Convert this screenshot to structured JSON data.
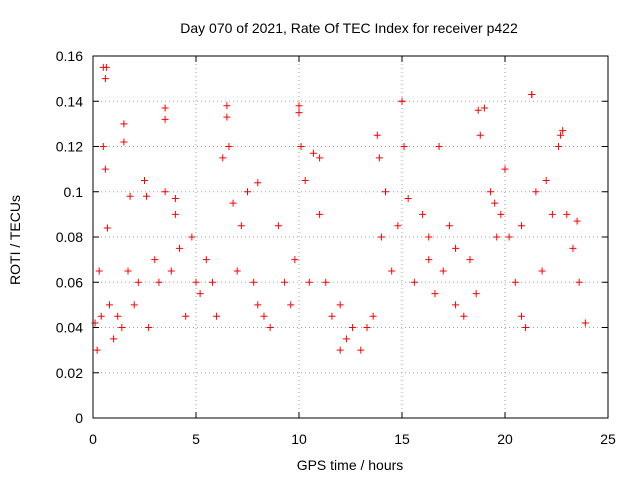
{
  "chart_data": {
    "type": "scatter",
    "title": "Day 070 of 2021, Rate Of TEC Index for receiver p422",
    "xlabel": "GPS time / hours",
    "ylabel": "ROTI / TECUs",
    "xlim": [
      0,
      25
    ],
    "ylim": [
      0,
      0.16
    ],
    "xticks": [
      0,
      5,
      10,
      15,
      20,
      25
    ],
    "xtick_labels": [
      "0",
      "5",
      "10",
      "15",
      "20",
      "25"
    ],
    "yticks": [
      0,
      0.02,
      0.04,
      0.06,
      0.08,
      0.1,
      0.12,
      0.14,
      0.16
    ],
    "ytick_labels": [
      "0",
      "0.02",
      "0.04",
      "0.06",
      "0.08",
      "0.1",
      "0.12",
      "0.14",
      "0.16"
    ],
    "grid": true,
    "marker": "plus",
    "color": "#ff0000",
    "series": [
      {
        "name": "ROTI",
        "x": [
          0.1,
          0.2,
          0.3,
          0.4,
          0.5,
          0.6,
          0.65,
          0.7,
          0.8,
          1.0,
          1.2,
          1.4,
          1.5,
          1.7,
          1.8,
          2.0,
          2.2,
          2.5,
          2.7,
          3.0,
          3.2,
          3.5,
          3.5,
          3.8,
          4.0,
          4.2,
          4.5,
          4.8,
          5.0,
          5.2,
          5.5,
          5.8,
          6.0,
          6.3,
          6.5,
          6.6,
          6.8,
          7.0,
          7.2,
          7.5,
          7.8,
          8.0,
          8.3,
          8.6,
          9.0,
          9.3,
          9.6,
          9.8,
          10.0,
          10.1,
          10.3,
          10.5,
          10.7,
          11.0,
          11.3,
          11.6,
          12.0,
          12.3,
          12.6,
          13.0,
          13.3,
          13.6,
          13.8,
          14.0,
          14.2,
          14.5,
          14.8,
          15.0,
          15.1,
          15.3,
          15.6,
          16.0,
          16.3,
          16.6,
          16.8,
          17.0,
          17.3,
          17.6,
          18.0,
          18.3,
          18.6,
          18.8,
          19.0,
          19.3,
          19.6,
          19.8,
          20.0,
          20.2,
          20.5,
          20.8,
          21.0,
          21.3,
          21.5,
          21.8,
          22.0,
          22.3,
          22.6,
          22.8,
          23.0,
          23.3,
          23.6,
          23.9,
          0.5,
          0.6,
          3.5,
          6.5,
          10.0,
          15.0,
          18.7,
          21.3,
          22.7,
          1.5,
          2.6,
          4.0,
          8.0,
          11.0,
          12.0,
          13.9,
          16.3,
          17.6,
          19.5,
          20.8,
          23.5
        ],
        "y": [
          0.042,
          0.03,
          0.065,
          0.045,
          0.12,
          0.11,
          0.155,
          0.084,
          0.05,
          0.035,
          0.045,
          0.04,
          0.13,
          0.065,
          0.098,
          0.05,
          0.06,
          0.105,
          0.04,
          0.07,
          0.06,
          0.137,
          0.1,
          0.065,
          0.09,
          0.075,
          0.045,
          0.08,
          0.06,
          0.055,
          0.07,
          0.06,
          0.045,
          0.115,
          0.138,
          0.12,
          0.095,
          0.065,
          0.085,
          0.1,
          0.06,
          0.05,
          0.045,
          0.04,
          0.085,
          0.06,
          0.05,
          0.07,
          0.135,
          0.12,
          0.105,
          0.06,
          0.117,
          0.09,
          0.06,
          0.045,
          0.03,
          0.035,
          0.04,
          0.03,
          0.04,
          0.045,
          0.125,
          0.08,
          0.1,
          0.065,
          0.085,
          0.14,
          0.12,
          0.097,
          0.06,
          0.09,
          0.07,
          0.055,
          0.12,
          0.065,
          0.085,
          0.05,
          0.045,
          0.07,
          0.055,
          0.125,
          0.137,
          0.1,
          0.08,
          0.09,
          0.11,
          0.08,
          0.06,
          0.045,
          0.04,
          0.143,
          0.1,
          0.065,
          0.105,
          0.09,
          0.12,
          0.127,
          0.09,
          0.075,
          0.06,
          0.042,
          0.155,
          0.15,
          0.132,
          0.133,
          0.138,
          0.14,
          0.136,
          0.143,
          0.125,
          0.122,
          0.098,
          0.097,
          0.104,
          0.115,
          0.05,
          0.115,
          0.08,
          0.075,
          0.095,
          0.085,
          0.087
        ]
      }
    ]
  }
}
